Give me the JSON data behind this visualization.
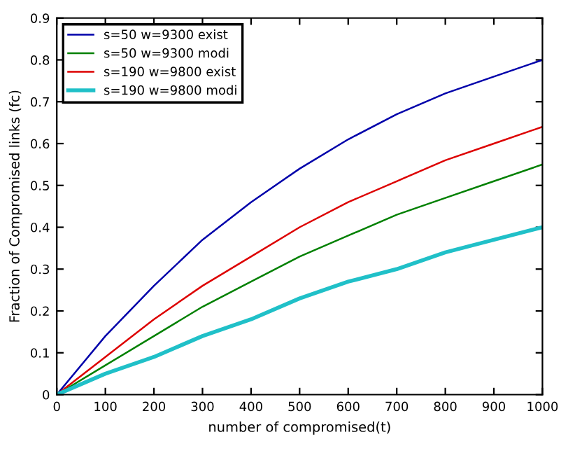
{
  "chart_data": {
    "type": "line",
    "xlabel": "number of compromised(t)",
    "ylabel": "Fraction of Compromised links (fc)",
    "x": [
      0,
      100,
      200,
      300,
      400,
      500,
      600,
      700,
      800,
      900,
      1000
    ],
    "series": [
      {
        "name": "s=50 w=9300 exist",
        "color": "#0000aa",
        "values": [
          0,
          0.14,
          0.26,
          0.37,
          0.46,
          0.54,
          0.61,
          0.67,
          0.72,
          0.76,
          0.8
        ]
      },
      {
        "name": "s=50 w=9300 modi",
        "color": "#008000",
        "values": [
          0,
          0.07,
          0.14,
          0.21,
          0.27,
          0.33,
          0.38,
          0.43,
          0.47,
          0.51,
          0.55
        ]
      },
      {
        "name": "s=190 w=9800 exist",
        "color": "#dd0000",
        "values": [
          0,
          0.09,
          0.18,
          0.26,
          0.33,
          0.4,
          0.46,
          0.51,
          0.56,
          0.6,
          0.64
        ]
      },
      {
        "name": "s=190 w=9800 modi",
        "color": "#20c0c8",
        "values": [
          0,
          0.05,
          0.09,
          0.14,
          0.18,
          0.23,
          0.27,
          0.3,
          0.34,
          0.37,
          0.4
        ]
      }
    ],
    "xlim": [
      0,
      1000
    ],
    "xticks": [
      0,
      100,
      200,
      300,
      400,
      500,
      600,
      700,
      800,
      900,
      1000
    ],
    "ylim": [
      0,
      0.9
    ],
    "yticks": [
      0,
      0.1,
      0.2,
      0.3,
      0.4,
      0.5,
      0.6,
      0.7,
      0.8,
      0.9
    ],
    "grid": false,
    "legend": "top left",
    "marker": "none",
    "line_style": "solid"
  }
}
